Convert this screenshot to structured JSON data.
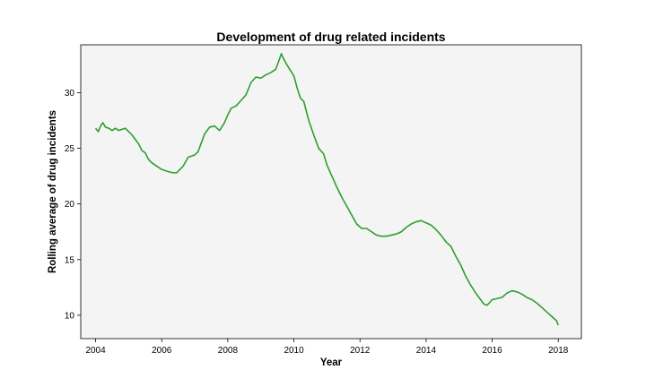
{
  "chart_data": {
    "type": "line",
    "title": "Development of drug related incidents",
    "xlabel": "Year",
    "ylabel": "Rolling average of drug incidents",
    "xlim": [
      2003.55,
      2018.7
    ],
    "ylim": [
      7.9,
      34.3
    ],
    "xticks": [
      "2004",
      "2006",
      "2008",
      "2010",
      "2012",
      "2014",
      "2016",
      "2018"
    ],
    "yticks": [
      "10",
      "15",
      "20",
      "25",
      "30"
    ],
    "grid": false,
    "background_color": "#f4f4f4",
    "line_color": "#2ca02c",
    "series": [
      {
        "x": [
          2004.0,
          2004.08,
          2004.15,
          2004.22,
          2004.3,
          2004.4,
          2004.5,
          2004.6,
          2004.7,
          2004.8,
          2004.9,
          2005.0,
          2005.1,
          2005.2,
          2005.3,
          2005.4,
          2005.5,
          2005.6,
          2005.7,
          2005.8,
          2006.0,
          2006.2,
          2006.35,
          2006.45,
          2006.55,
          2006.65,
          2006.8,
          2007.0,
          2007.1,
          2007.2,
          2007.3,
          2007.45,
          2007.6,
          2007.75,
          2007.9,
          2008.0,
          2008.1,
          2008.25,
          2008.4,
          2008.55,
          2008.7,
          2008.85,
          2009.0,
          2009.15,
          2009.3,
          2009.45,
          2009.55,
          2009.62,
          2009.68,
          2009.75,
          2009.85,
          2010.0,
          2010.1,
          2010.2,
          2010.3,
          2010.45,
          2010.6,
          2010.75,
          2010.9,
          2011.0,
          2011.15,
          2011.3,
          2011.45,
          2011.6,
          2011.75,
          2011.9,
          2012.05,
          2012.2,
          2012.35,
          2012.5,
          2012.65,
          2012.8,
          2012.95,
          2013.1,
          2013.25,
          2013.4,
          2013.55,
          2013.7,
          2013.85,
          2014.0,
          2014.15,
          2014.3,
          2014.45,
          2014.6,
          2014.75,
          2014.9,
          2015.05,
          2015.2,
          2015.35,
          2015.5,
          2015.65,
          2015.75,
          2015.85,
          2016.0,
          2016.15,
          2016.3,
          2016.45,
          2016.6,
          2016.75,
          2016.9,
          2017.05,
          2017.2,
          2017.35,
          2017.5,
          2017.65,
          2017.8,
          2017.95,
          2018.0
        ],
        "y": [
          26.8,
          26.5,
          27.0,
          27.3,
          26.9,
          26.8,
          26.6,
          26.8,
          26.6,
          26.7,
          26.8,
          26.5,
          26.2,
          25.8,
          25.4,
          24.8,
          24.6,
          24.0,
          23.7,
          23.5,
          23.1,
          22.9,
          22.8,
          22.8,
          23.1,
          23.4,
          24.2,
          24.4,
          24.7,
          25.5,
          26.3,
          26.9,
          27.0,
          26.6,
          27.3,
          28.0,
          28.6,
          28.8,
          29.3,
          29.8,
          30.9,
          31.4,
          31.3,
          31.6,
          31.8,
          32.1,
          32.9,
          33.5,
          33.1,
          32.7,
          32.2,
          31.5,
          30.4,
          29.5,
          29.2,
          27.5,
          26.2,
          25.0,
          24.5,
          23.5,
          22.5,
          21.5,
          20.6,
          19.8,
          19.0,
          18.2,
          17.8,
          17.8,
          17.5,
          17.2,
          17.1,
          17.1,
          17.2,
          17.3,
          17.5,
          17.9,
          18.2,
          18.4,
          18.5,
          18.3,
          18.1,
          17.7,
          17.2,
          16.6,
          16.2,
          15.3,
          14.5,
          13.5,
          12.7,
          12.0,
          11.4,
          11.0,
          10.9,
          11.4,
          11.5,
          11.6,
          12.0,
          12.2,
          12.1,
          11.9,
          11.6,
          11.4,
          11.1,
          10.7,
          10.3,
          9.9,
          9.5,
          9.1
        ]
      }
    ]
  }
}
